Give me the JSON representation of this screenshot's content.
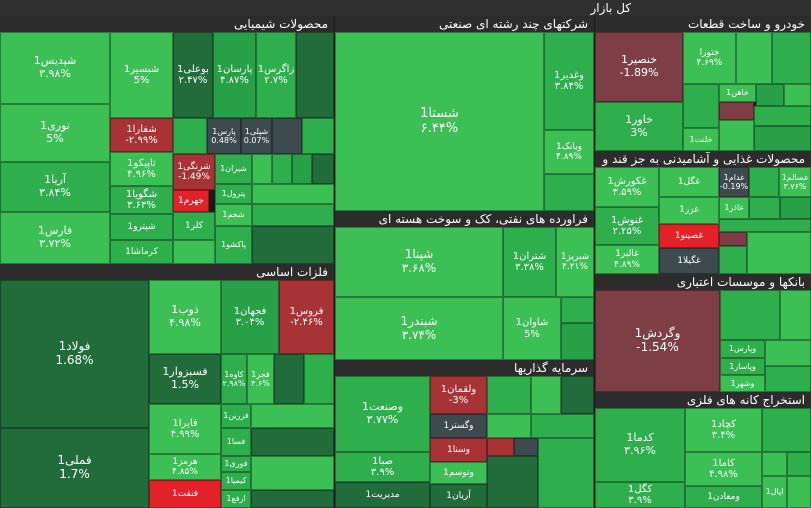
{
  "title": "کل بازار",
  "sectors": {
    "chem": "محصولات شیمیایی",
    "multi": "شرکتهای چند رشته ای صنعتی",
    "auto": "خودرو و ساخت قطعات",
    "food": "محصولات غذایی و آشامیدنی به جز قند و",
    "metal": "فلزات اساسی",
    "oil": "فراورده های نفتی، کک و سوخت هسته ای",
    "bank": "بانکها و موسسات اعتباری",
    "invest": "سرمایه گذاریها",
    "mining": "استخراج کانه های فلزی"
  },
  "cells": {
    "shpdis": {
      "n": "شپدیس1",
      "p": "۳.۹۸%"
    },
    "shbsir": {
      "n": "شبسیر1",
      "p": "5%"
    },
    "bouali": {
      "n": "بوعلی1",
      "p": "۲.۴۷%"
    },
    "parsan": {
      "n": "پارسان1",
      "p": "۴.۸۷%"
    },
    "zagros": {
      "n": "زاگرس1",
      "p": "۲.۷%"
    },
    "noori": {
      "n": "نوری1",
      "p": "5%"
    },
    "shfara": {
      "n": "شفارا1",
      "p": "-۲.۹۹%"
    },
    "pars": {
      "n": "پارس1",
      "p": "0.48%"
    },
    "shpli": {
      "n": "شپلی1",
      "p": "0.07%"
    },
    "arya": {
      "n": "آریا1",
      "p": "۳.۸۴%"
    },
    "tapico": {
      "n": "تاپیکو1",
      "p": "۴.۹۶%"
    },
    "shrangi": {
      "n": "شرنگی1",
      "p": "-1.49%"
    },
    "shiran": {
      "n": "شیران1",
      "p": ""
    },
    "shgouya": {
      "n": "شگویا1",
      "p": "۳.۶۳%"
    },
    "jahrom": {
      "n": "جهرم1",
      "p": ""
    },
    "petrol": {
      "n": "پترول1",
      "p": ""
    },
    "fars": {
      "n": "فارس1",
      "p": "۳.۷۲%"
    },
    "shpetro": {
      "n": "شپترو1",
      "p": ""
    },
    "kalar": {
      "n": "کلر1",
      "p": ""
    },
    "shjam": {
      "n": "شجم1",
      "p": ""
    },
    "kermasha": {
      "n": "کرماشا1",
      "p": ""
    },
    "pakshu": {
      "n": "پاکشو1",
      "p": ""
    },
    "shasta": {
      "n": "شستا1",
      "p": "۶.۴۴%"
    },
    "vghadir": {
      "n": "وغدیر1",
      "p": "۳.۸۴%"
    },
    "vbank": {
      "n": "وبانک1",
      "p": "۴.۸۹%"
    },
    "khonsir": {
      "n": "خنصیر1",
      "p": "-1.89%"
    },
    "khavar": {
      "n": "خاور1",
      "p": "3%"
    },
    "khtoura": {
      "n": "ختورا",
      "p": "۴.۶۹%"
    },
    "khahan": {
      "n": "خاهن1",
      "p": ""
    },
    "khlent": {
      "n": "خلنت1",
      "p": ""
    },
    "ghkorosh": {
      "n": "غکورش1",
      "p": "۳.۵۹%"
    },
    "ghgol": {
      "n": "غگل1",
      "p": ""
    },
    "ghdam": {
      "n": "غدام1",
      "p": "-0.19%"
    },
    "ghsalem": {
      "n": "غسالم1",
      "p": "۳.۷۶%"
    },
    "ghzar": {
      "n": "غزر1",
      "p": ""
    },
    "ghazar": {
      "n": "غاذر1",
      "p": ""
    },
    "ghnosh": {
      "n": "غنوش1",
      "p": "۲.۲۵%"
    },
    "ghsino": {
      "n": "غصینو1",
      "p": ""
    },
    "ghaber": {
      "n": "غالبر1",
      "p": "۴.۸۹%"
    },
    "ghgila": {
      "n": "غگیلا1",
      "p": ""
    },
    "foolad": {
      "n": "فولاد1",
      "p": "1.68%"
    },
    "zob": {
      "n": "ذوب1",
      "p": "۴.۹۸%"
    },
    "fjahan": {
      "n": "فجهان1",
      "p": "۳.۰۴%"
    },
    "foroos": {
      "n": "فروس1",
      "p": "-۲.۴۶%"
    },
    "fasbzvar": {
      "n": "فسبزوار1",
      "p": "1.5%"
    },
    "kave": {
      "n": "کاوه1",
      "p": "۲.۹۸%"
    },
    "fjar": {
      "n": "فجر1",
      "p": "۴.۶%"
    },
    "fzarin": {
      "n": "فزرین1",
      "p": ""
    },
    "faira": {
      "n": "فایرا1",
      "p": "۴.۹۹%"
    },
    "fsa": {
      "n": "فسا1",
      "p": ""
    },
    "hormoz": {
      "n": "هرمز1",
      "p": "۴.۸۵%"
    },
    "fvari": {
      "n": "فوری1",
      "p": ""
    },
    "kimia": {
      "n": "کیمیا1",
      "p": ""
    },
    "fameli": {
      "n": "فملی1",
      "p": "1.7%"
    },
    "fnft": {
      "n": "فنفت1",
      "p": ""
    },
    "arfa": {
      "n": "ارفع1",
      "p": ""
    },
    "shpna": {
      "n": "شپنا1",
      "p": "۳.۶۸%"
    },
    "shtran": {
      "n": "شتران1",
      "p": "۳.۳۸%"
    },
    "shbriz": {
      "n": "شبریز1",
      "p": "۴.۲۱%"
    },
    "shavan": {
      "n": "شاوان1",
      "p": "5%"
    },
    "shbndr": {
      "n": "شبندر1",
      "p": "۳.۷۴%"
    },
    "vgardesh": {
      "n": "وگردش1",
      "p": "-1.54%"
    },
    "vparis": {
      "n": "وپارس1",
      "p": ""
    },
    "vpasar": {
      "n": "وپاسار1",
      "p": ""
    },
    "vshahr": {
      "n": "وشهر1",
      "p": ""
    },
    "vsanat": {
      "n": "وصنعت1",
      "p": "۳.۷۷%"
    },
    "vlghman": {
      "n": "ولقمان1",
      "p": "-3%"
    },
    "vgostar": {
      "n": "وگستر1",
      "p": ""
    },
    "vsina": {
      "n": "وسنا1",
      "p": ""
    },
    "saba": {
      "n": "صبا1",
      "p": "۳.۹%"
    },
    "vtoos": {
      "n": "وتوسم1",
      "p": ""
    },
    "modir": {
      "n": "مدیریت1",
      "p": ""
    },
    "aryan": {
      "n": "آریان1",
      "p": ""
    },
    "kdma": {
      "n": "کدما1",
      "p": "۳.۹۶%"
    },
    "kchad": {
      "n": "کچاد1",
      "p": "۳.۴%"
    },
    "kama": {
      "n": "کاما1",
      "p": "۴.۹۸%"
    },
    "kgol": {
      "n": "کگل1",
      "p": "۳.۹%"
    },
    "vmaadan": {
      "n": "ومعادن1",
      "p": ""
    },
    "ahal": {
      "n": "اپال1",
      "p": ""
    }
  }
}
